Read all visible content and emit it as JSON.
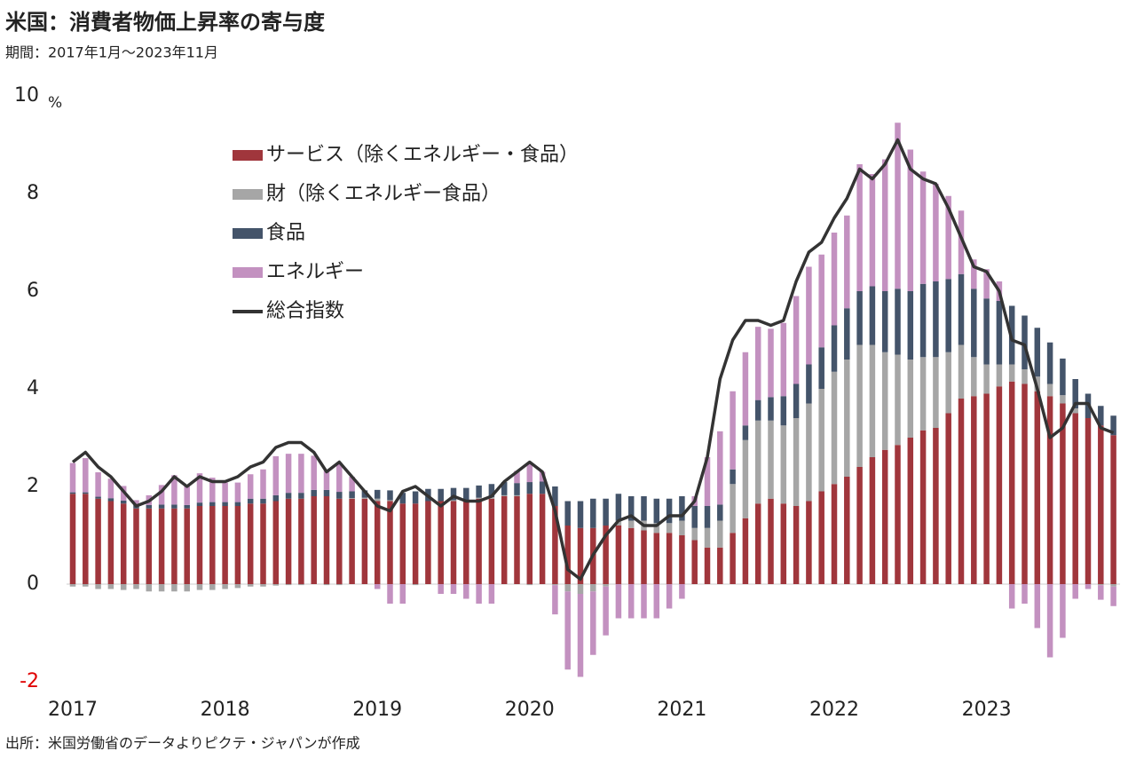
{
  "chart_data": {
    "type": "stacked_bar_line",
    "title": "米国：消費者物価上昇率の寄与度",
    "subtitle": "期間：2017年1月～2023年11月",
    "source": "出所：米国労働省のデータよりピクテ・ジャパンが作成",
    "y_unit": "%",
    "categories": [
      "2017",
      null,
      null,
      null,
      null,
      null,
      null,
      null,
      null,
      null,
      null,
      null,
      "2018",
      null,
      null,
      null,
      null,
      null,
      null,
      null,
      null,
      null,
      null,
      null,
      "2019",
      null,
      null,
      null,
      null,
      null,
      null,
      null,
      null,
      null,
      null,
      null,
      "2020",
      null,
      null,
      null,
      null,
      null,
      null,
      null,
      null,
      null,
      null,
      null,
      "2021",
      null,
      null,
      null,
      null,
      null,
      null,
      null,
      null,
      null,
      null,
      null,
      "2022",
      null,
      null,
      null,
      null,
      null,
      null,
      null,
      null,
      null,
      null,
      null,
      "2023",
      null,
      null,
      null,
      null,
      null,
      null,
      null,
      null,
      null,
      null
    ],
    "series": [
      {
        "name": "サービス（除くエネルギー・食品）",
        "type": "bar",
        "color": "#a0363c",
        "values": [
          1.85,
          1.85,
          1.75,
          1.7,
          1.65,
          1.55,
          1.55,
          1.55,
          1.55,
          1.55,
          1.6,
          1.6,
          1.6,
          1.6,
          1.65,
          1.65,
          1.7,
          1.75,
          1.75,
          1.8,
          1.8,
          1.75,
          1.75,
          1.75,
          1.7,
          1.7,
          1.65,
          1.65,
          1.7,
          1.7,
          1.7,
          1.7,
          1.75,
          1.75,
          1.8,
          1.8,
          1.85,
          1.85,
          1.6,
          1.2,
          1.15,
          1.15,
          1.2,
          1.2,
          1.15,
          1.1,
          1.05,
          1.05,
          1.0,
          0.9,
          0.75,
          0.75,
          1.05,
          1.35,
          1.65,
          1.75,
          1.65,
          1.6,
          1.7,
          1.9,
          2.05,
          2.2,
          2.4,
          2.6,
          2.75,
          2.85,
          3.0,
          3.15,
          3.2,
          3.5,
          3.8,
          3.85,
          3.9,
          4.05,
          4.15,
          4.1,
          3.95,
          3.85,
          3.7,
          3.5,
          3.4,
          3.25,
          3.05
        ]
      },
      {
        "name": "財（除くエネルギー食品）",
        "type": "bar",
        "color": "#a6a6a6",
        "values": [
          -0.05,
          -0.05,
          -0.1,
          -0.1,
          -0.12,
          -0.1,
          -0.15,
          -0.15,
          -0.15,
          -0.15,
          -0.12,
          -0.12,
          -0.1,
          -0.08,
          -0.05,
          -0.05,
          -0.03,
          -0.02,
          -0.02,
          0.0,
          -0.02,
          -0.02,
          0.01,
          0.02,
          0.05,
          0.02,
          0.0,
          -0.02,
          0.0,
          0.0,
          0.02,
          0.02,
          0.02,
          0.03,
          0.02,
          0.02,
          -0.02,
          0.0,
          -0.02,
          -0.15,
          -0.2,
          -0.15,
          -0.05,
          0.1,
          0.15,
          0.2,
          0.2,
          0.2,
          0.3,
          0.25,
          0.4,
          0.55,
          1.0,
          1.6,
          1.7,
          1.6,
          1.6,
          1.8,
          2.0,
          2.1,
          2.3,
          2.4,
          2.5,
          2.3,
          2.0,
          1.85,
          1.6,
          1.5,
          1.45,
          1.25,
          1.1,
          0.8,
          0.6,
          0.45,
          0.35,
          0.3,
          0.3,
          0.25,
          0.17,
          0.1,
          0.0,
          -0.02,
          -0.05
        ]
      },
      {
        "name": "食品",
        "type": "bar",
        "color": "#44546a",
        "values": [
          0.03,
          0.03,
          0.04,
          0.06,
          0.06,
          0.07,
          0.07,
          0.08,
          0.08,
          0.07,
          0.07,
          0.08,
          0.08,
          0.08,
          0.1,
          0.1,
          0.12,
          0.12,
          0.12,
          0.13,
          0.13,
          0.14,
          0.14,
          0.15,
          0.18,
          0.2,
          0.22,
          0.25,
          0.25,
          0.25,
          0.25,
          0.25,
          0.25,
          0.27,
          0.27,
          0.25,
          0.24,
          0.25,
          0.4,
          0.5,
          0.55,
          0.6,
          0.55,
          0.55,
          0.5,
          0.5,
          0.5,
          0.5,
          0.5,
          0.45,
          0.45,
          0.33,
          0.3,
          0.3,
          0.42,
          0.48,
          0.6,
          0.7,
          0.8,
          0.85,
          0.95,
          1.05,
          1.1,
          1.2,
          1.25,
          1.35,
          1.4,
          1.5,
          1.55,
          1.5,
          1.45,
          1.4,
          1.35,
          1.3,
          1.2,
          1.1,
          1.0,
          0.85,
          0.75,
          0.6,
          0.5,
          0.4,
          0.4
        ]
      },
      {
        "name": "エネルギー",
        "type": "bar",
        "color": "#c391c0",
        "values": [
          0.6,
          0.7,
          0.5,
          0.4,
          0.3,
          0.1,
          0.2,
          0.4,
          0.6,
          0.4,
          0.6,
          0.5,
          0.4,
          0.4,
          0.5,
          0.6,
          0.8,
          0.8,
          0.8,
          0.7,
          0.4,
          0.6,
          0.3,
          0.0,
          -0.1,
          -0.4,
          -0.4,
          0.0,
          0.0,
          -0.2,
          -0.2,
          -0.3,
          -0.4,
          -0.4,
          0.0,
          0.25,
          0.4,
          0.2,
          -0.6,
          -1.6,
          -1.7,
          -1.3,
          -1.0,
          -0.7,
          -0.7,
          -0.7,
          -0.7,
          -0.5,
          -0.3,
          0.2,
          1.0,
          1.5,
          1.6,
          1.5,
          1.5,
          1.4,
          1.5,
          1.8,
          2.0,
          1.9,
          1.9,
          1.9,
          2.6,
          2.3,
          2.7,
          3.4,
          2.9,
          2.3,
          2.0,
          1.7,
          1.3,
          0.6,
          0.6,
          0.4,
          -0.5,
          -0.4,
          -0.9,
          -1.5,
          -1.1,
          -0.3,
          -0.1,
          -0.3,
          -0.4
        ]
      },
      {
        "name": "総合指数",
        "type": "line",
        "color": "#333333",
        "values": [
          2.5,
          2.7,
          2.4,
          2.2,
          1.9,
          1.6,
          1.7,
          1.9,
          2.2,
          2.0,
          2.2,
          2.1,
          2.1,
          2.2,
          2.4,
          2.5,
          2.8,
          2.9,
          2.9,
          2.7,
          2.3,
          2.5,
          2.2,
          1.9,
          1.6,
          1.5,
          1.9,
          2.0,
          1.8,
          1.6,
          1.8,
          1.7,
          1.7,
          1.8,
          2.1,
          2.3,
          2.5,
          2.3,
          1.5,
          0.3,
          0.1,
          0.6,
          1.0,
          1.3,
          1.4,
          1.2,
          1.2,
          1.4,
          1.4,
          1.7,
          2.6,
          4.2,
          5.0,
          5.4,
          5.4,
          5.3,
          5.4,
          6.2,
          6.8,
          7.0,
          7.5,
          7.9,
          8.5,
          8.3,
          8.6,
          9.1,
          8.5,
          8.3,
          8.2,
          7.7,
          7.1,
          6.5,
          6.4,
          6.0,
          5.0,
          4.9,
          4.0,
          3.0,
          3.2,
          3.7,
          3.7,
          3.2,
          3.1
        ]
      }
    ],
    "ylim": [
      -2,
      10
    ],
    "yticks": [
      -2,
      0,
      2,
      4,
      6,
      8,
      10
    ],
    "negative_tick_color": "#e00000",
    "grid": false
  }
}
